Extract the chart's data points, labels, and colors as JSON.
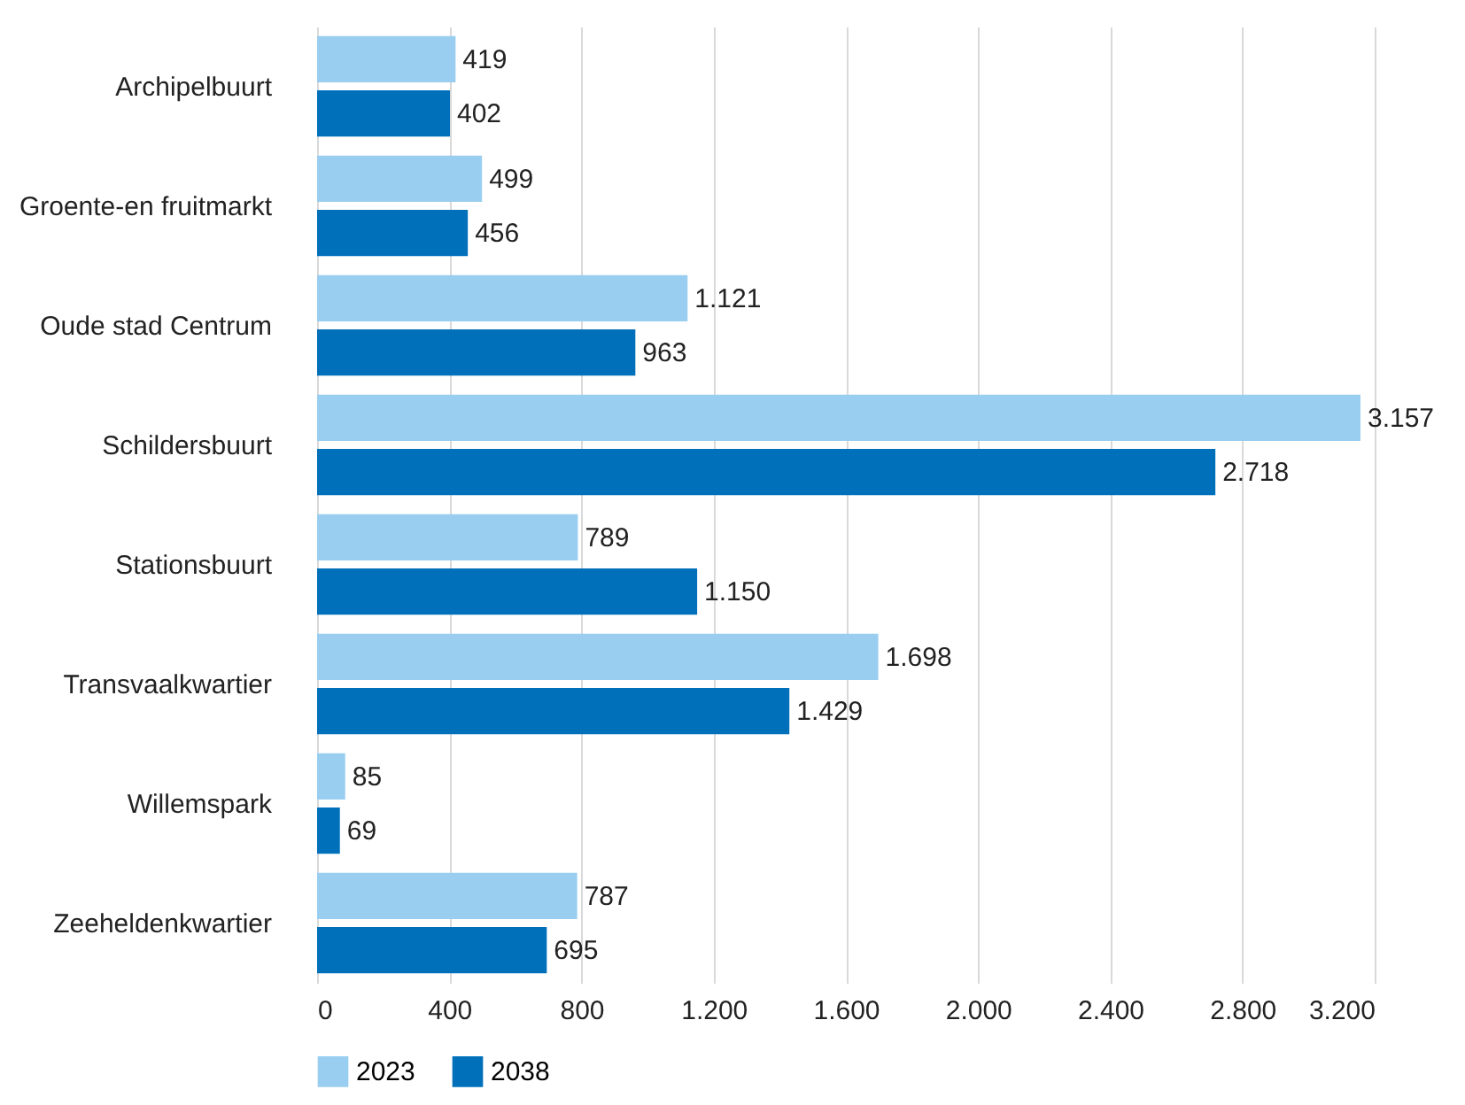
{
  "chart_data": {
    "type": "bar",
    "orientation": "horizontal",
    "categories": [
      "Archipelbuurt",
      "Groente-en fruitmarkt",
      "Oude stad Centrum",
      "Schildersbuurt",
      "Stationsbuurt",
      "Transvaalkwartier",
      "Willemspark",
      "Zeeheldenkwartier"
    ],
    "series": [
      {
        "name": "2023",
        "color": "#99cef1",
        "values": [
          419,
          499,
          1121,
          3157,
          789,
          1698,
          85,
          787
        ],
        "value_labels": [
          "419",
          "499",
          "1.121",
          "3.157",
          "789",
          "1.698",
          "85",
          "787"
        ]
      },
      {
        "name": "2038",
        "color": "#0070bb",
        "values": [
          402,
          456,
          963,
          2718,
          1150,
          1429,
          69,
          695
        ],
        "value_labels": [
          "402",
          "456",
          "963",
          "2.718",
          "1.150",
          "1.429",
          "69",
          "695"
        ]
      }
    ],
    "xlim": [
      0,
      3200
    ],
    "xticks": [
      0,
      400,
      {
        "value": 800,
        "label": "800"
      },
      {
        "value": 1200,
        "label": "1.200"
      },
      {
        "value": 1600,
        "label": "1.600"
      },
      {
        "value": 2000,
        "label": "2.000"
      },
      {
        "value": 2400,
        "label": "2.400"
      },
      {
        "value": 2800,
        "label": "2.800"
      },
      {
        "value": 3200,
        "label": "3.200"
      }
    ],
    "grid": "x",
    "legend": "bottom"
  }
}
